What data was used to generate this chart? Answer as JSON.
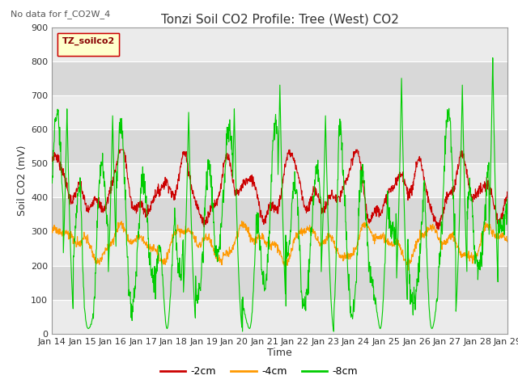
{
  "title": "Tonzi Soil CO2 Profile: Tree (West) CO2",
  "subtitle": "No data for f_CO2W_4",
  "ylabel": "Soil CO2 (mV)",
  "xlabel": "Time",
  "legend_label": "TZ_soilco2",
  "series_labels": [
    "-2cm",
    "-4cm",
    "-8cm"
  ],
  "series_colors": [
    "#cc0000",
    "#ff9900",
    "#00cc00"
  ],
  "ylim": [
    0,
    900
  ],
  "yticks": [
    0,
    100,
    200,
    300,
    400,
    500,
    600,
    700,
    800,
    900
  ],
  "xtick_labels": [
    "Jan 14",
    "Jan 15",
    "Jan 16",
    "Jan 17",
    "Jan 18",
    "Jan 19",
    "Jan 20",
    "Jan 21",
    "Jan 22",
    "Jan 23",
    "Jan 24",
    "Jan 25",
    "Jan 26",
    "Jan 27",
    "Jan 28",
    "Jan 29"
  ],
  "n_points": 1500,
  "background_color": "#ffffff",
  "plot_bg_color": "#ebebeb",
  "grid_color": "#ffffff",
  "title_fontsize": 11,
  "axis_fontsize": 9,
  "tick_fontsize": 8,
  "legend_box_color": "#ffffcc",
  "legend_text_color": "#880000"
}
